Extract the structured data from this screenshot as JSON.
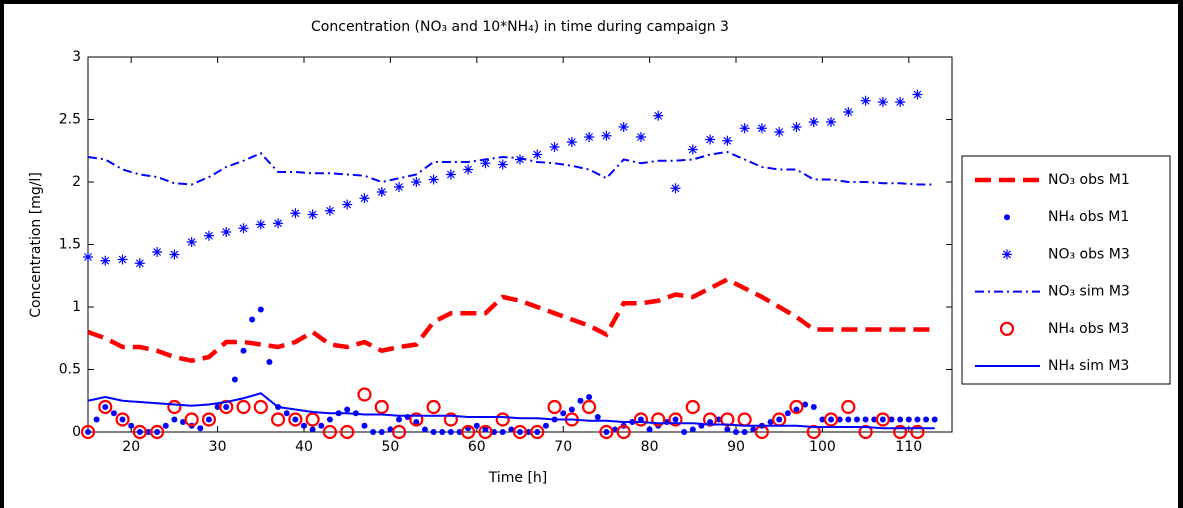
{
  "chart_data": {
    "type": "line",
    "title": "Concentration (NO₃ and 10*NH₄) in time during campaign 3",
    "x_label": "Time [h]",
    "y_label": "Concentration [mg/l]",
    "xlim": [
      15,
      115
    ],
    "ylim": [
      0,
      3
    ],
    "xticks": [
      20,
      30,
      40,
      50,
      60,
      70,
      80,
      90,
      100,
      110
    ],
    "yticks": [
      0,
      0.5,
      1,
      1.5,
      2,
      2.5,
      3
    ],
    "legend": "outside-right",
    "series": [
      {
        "name": "NO₃ obs M1",
        "color": "#ff0000",
        "style": "dashed",
        "x": [
          15,
          17,
          19,
          21,
          23,
          25,
          27,
          29,
          31,
          33,
          35,
          37,
          39,
          41,
          43,
          45,
          47,
          49,
          51,
          53,
          55,
          57,
          59,
          61,
          63,
          65,
          67,
          69,
          71,
          73,
          75,
          77,
          79,
          81,
          83,
          85,
          87,
          89,
          91,
          93,
          95,
          97,
          99,
          101,
          103,
          105,
          107,
          109,
          111,
          113
        ],
        "values": [
          0.8,
          0.75,
          0.68,
          0.68,
          0.65,
          0.6,
          0.57,
          0.6,
          0.72,
          0.72,
          0.7,
          0.68,
          0.72,
          0.8,
          0.7,
          0.68,
          0.72,
          0.65,
          0.68,
          0.7,
          0.88,
          0.95,
          0.95,
          0.95,
          1.08,
          1.05,
          1.0,
          0.95,
          0.9,
          0.85,
          0.78,
          1.03,
          1.03,
          1.05,
          1.1,
          1.08,
          1.15,
          1.22,
          1.15,
          1.08,
          1.0,
          0.92,
          0.82,
          0.82,
          0.82,
          0.82,
          0.82,
          0.82,
          0.82,
          0.82
        ]
      },
      {
        "name": "NH₄ obs M1",
        "color": "#0000ff",
        "style": "dot",
        "x": [
          15,
          16,
          17,
          18,
          19,
          20,
          21,
          22,
          23,
          24,
          25,
          26,
          27,
          28,
          29,
          30,
          31,
          32,
          33,
          34,
          35,
          36,
          37,
          38,
          39,
          40,
          41,
          42,
          43,
          44,
          45,
          46,
          47,
          48,
          49,
          50,
          51,
          52,
          53,
          54,
          55,
          56,
          57,
          58,
          59,
          60,
          61,
          62,
          63,
          64,
          65,
          66,
          67,
          68,
          69,
          70,
          71,
          72,
          73,
          74,
          75,
          76,
          77,
          78,
          79,
          80,
          81,
          82,
          83,
          84,
          85,
          86,
          87,
          88,
          89,
          90,
          91,
          92,
          93,
          94,
          95,
          96,
          97,
          98,
          99,
          100,
          101,
          102,
          103,
          104,
          105,
          106,
          107,
          108,
          109,
          110,
          111,
          112,
          113
        ],
        "values": [
          0,
          0.1,
          0.2,
          0.15,
          0.1,
          0.05,
          0,
          0,
          0,
          0.05,
          0.1,
          0.08,
          0.05,
          0.03,
          0.1,
          0.2,
          0.2,
          0.42,
          0.65,
          0.9,
          0.98,
          0.56,
          0.2,
          0.15,
          0.1,
          0.05,
          0.02,
          0.05,
          0.1,
          0.15,
          0.18,
          0.15,
          0.05,
          0,
          0,
          0.02,
          0.1,
          0.12,
          0.08,
          0.02,
          0,
          0,
          0,
          0,
          0.03,
          0.05,
          0.02,
          0,
          0,
          0.02,
          0,
          0,
          0,
          0.05,
          0.1,
          0.15,
          0.18,
          0.25,
          0.28,
          0.12,
          0,
          0.02,
          0.05,
          0.08,
          0.1,
          0.02,
          0.05,
          0.08,
          0.1,
          0,
          0.02,
          0.05,
          0.08,
          0.1,
          0.02,
          0,
          0,
          0.02,
          0.05,
          0.08,
          0.1,
          0.15,
          0.18,
          0.22,
          0.2,
          0.1,
          0.1,
          0.1,
          0.1,
          0.1,
          0.1,
          0.1,
          0.1,
          0.1,
          0.1,
          0.1,
          0.1,
          0.1,
          0.1
        ]
      },
      {
        "name": "NO₃ obs M3",
        "color": "#0000ff",
        "style": "star",
        "x": [
          15,
          17,
          19,
          21,
          23,
          25,
          27,
          29,
          31,
          33,
          35,
          37,
          39,
          41,
          43,
          45,
          47,
          49,
          51,
          53,
          55,
          57,
          59,
          61,
          63,
          65,
          67,
          69,
          71,
          73,
          75,
          77,
          79,
          81,
          83,
          85,
          87,
          89,
          91,
          93,
          95,
          97,
          99,
          101,
          103,
          105,
          107,
          109,
          111
        ],
        "values": [
          1.4,
          1.37,
          1.38,
          1.35,
          1.44,
          1.42,
          1.52,
          1.57,
          1.6,
          1.63,
          1.66,
          1.67,
          1.75,
          1.74,
          1.77,
          1.82,
          1.87,
          1.92,
          1.96,
          2.0,
          2.02,
          2.06,
          2.1,
          2.15,
          2.14,
          2.18,
          2.22,
          2.28,
          2.32,
          2.36,
          2.37,
          2.44,
          2.36,
          2.53,
          1.95,
          2.26,
          2.34,
          2.33,
          2.43,
          2.43,
          2.4,
          2.44,
          2.48,
          2.48,
          2.56,
          2.65,
          2.64,
          2.64,
          2.7
        ]
      },
      {
        "name": "NO₃ sim M3",
        "color": "#0000ff",
        "style": "dashdot",
        "x": [
          15,
          17,
          19,
          21,
          23,
          25,
          27,
          29,
          31,
          33,
          35,
          37,
          39,
          41,
          43,
          45,
          47,
          49,
          51,
          53,
          55,
          57,
          59,
          61,
          63,
          65,
          67,
          69,
          71,
          73,
          75,
          77,
          79,
          81,
          83,
          85,
          87,
          89,
          91,
          93,
          95,
          97,
          99,
          101,
          103,
          105,
          107,
          109,
          111,
          113
        ],
        "values": [
          2.2,
          2.18,
          2.1,
          2.06,
          2.04,
          1.99,
          1.98,
          2.04,
          2.12,
          2.17,
          2.23,
          2.08,
          2.08,
          2.07,
          2.07,
          2.06,
          2.05,
          2.0,
          2.03,
          2.06,
          2.16,
          2.16,
          2.16,
          2.18,
          2.2,
          2.19,
          2.16,
          2.15,
          2.13,
          2.1,
          2.03,
          2.18,
          2.15,
          2.17,
          2.17,
          2.18,
          2.22,
          2.24,
          2.18,
          2.12,
          2.1,
          2.1,
          2.02,
          2.02,
          2.0,
          2.0,
          1.99,
          1.99,
          1.98,
          1.98
        ]
      },
      {
        "name": "NH₄ obs M3",
        "color": "#ff0000",
        "style": "circle",
        "x": [
          15,
          17,
          19,
          21,
          23,
          25,
          27,
          29,
          31,
          33,
          35,
          37,
          39,
          41,
          43,
          45,
          47,
          49,
          51,
          53,
          55,
          57,
          59,
          61,
          63,
          65,
          67,
          69,
          71,
          73,
          75,
          77,
          79,
          81,
          83,
          85,
          87,
          89,
          91,
          93,
          95,
          97,
          99,
          101,
          103,
          105,
          107,
          109,
          111
        ],
        "values": [
          0,
          0.2,
          0.1,
          0,
          0,
          0.2,
          0.1,
          0.1,
          0.2,
          0.2,
          0.2,
          0.1,
          0.1,
          0.1,
          0,
          0,
          0.3,
          0.2,
          0,
          0.1,
          0.2,
          0.1,
          0,
          0,
          0.1,
          0,
          0,
          0.2,
          0.1,
          0.2,
          0,
          0,
          0.1,
          0.1,
          0.1,
          0.2,
          0.1,
          0.1,
          0.1,
          0,
          0.1,
          0.2,
          0,
          0.1,
          0.2,
          0,
          0.1,
          0,
          0
        ]
      },
      {
        "name": "NH₄ sim M3",
        "color": "#0000ff",
        "style": "solid",
        "x": [
          15,
          17,
          19,
          21,
          23,
          25,
          27,
          29,
          31,
          33,
          35,
          37,
          39,
          41,
          43,
          45,
          47,
          49,
          51,
          53,
          55,
          57,
          59,
          61,
          63,
          65,
          67,
          69,
          71,
          73,
          75,
          77,
          79,
          81,
          83,
          85,
          87,
          89,
          91,
          93,
          95,
          97,
          99,
          101,
          103,
          105,
          107,
          109,
          111,
          113
        ],
        "values": [
          0.25,
          0.28,
          0.25,
          0.24,
          0.23,
          0.22,
          0.21,
          0.22,
          0.24,
          0.27,
          0.31,
          0.2,
          0.18,
          0.16,
          0.15,
          0.15,
          0.14,
          0.14,
          0.13,
          0.13,
          0.13,
          0.13,
          0.12,
          0.12,
          0.12,
          0.11,
          0.11,
          0.1,
          0.1,
          0.09,
          0.09,
          0.08,
          0.08,
          0.07,
          0.07,
          0.07,
          0.06,
          0.06,
          0.05,
          0.05,
          0.05,
          0.05,
          0.04,
          0.04,
          0.04,
          0.04,
          0.03,
          0.03,
          0.03,
          0.03
        ]
      }
    ]
  }
}
